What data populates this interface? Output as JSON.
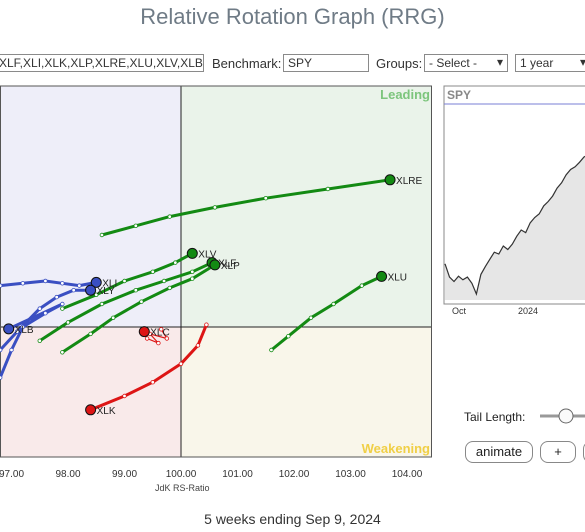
{
  "title": "Relative Rotation Graph (RRG)",
  "controls": {
    "symbols_value": "XLF,XLI,XLK,XLP,XLRE,XLU,XLV,XLB",
    "benchmark_label": "Benchmark:",
    "benchmark_value": "SPY",
    "groups_label": "Groups:",
    "groups_value": "- Select -",
    "period_value": "1 year"
  },
  "quadrants": {
    "leading": "Leading",
    "weakening": "Weakening"
  },
  "colors": {
    "leading_bg": "#eaf3ea",
    "weakening_bg": "#f9f6ea",
    "lagging_bg": "#f9eaea",
    "improving_bg": "#eeeef9",
    "green": "#138a13",
    "blue": "#3a4fc2",
    "red": "#dd1515"
  },
  "chart_data": {
    "type": "scatter",
    "xlabel": "JdK RS-Ratio",
    "ylabel": "",
    "xlim": [
      96.8,
      104.5
    ],
    "ylim": [
      96.2,
      104.3
    ],
    "x_ticks": [
      "97.00",
      "98.00",
      "99.00",
      "100.00",
      "101.00",
      "102.00",
      "103.00",
      "104.00"
    ],
    "center": [
      100,
      100
    ],
    "series": [
      {
        "name": "XLRE",
        "color": "green",
        "points": [
          [
            98.6,
            102.0
          ],
          [
            99.2,
            102.2
          ],
          [
            99.8,
            102.4
          ],
          [
            100.6,
            102.6
          ],
          [
            101.5,
            102.8
          ],
          [
            102.6,
            103.0
          ],
          [
            103.7,
            103.2
          ]
        ]
      },
      {
        "name": "XLV",
        "color": "green",
        "points": [
          [
            97.9,
            100.4
          ],
          [
            98.5,
            100.7
          ],
          [
            99.0,
            101.0
          ],
          [
            99.5,
            101.2
          ],
          [
            99.9,
            101.4
          ],
          [
            100.2,
            101.6
          ]
        ]
      },
      {
        "name": "XLF",
        "color": "green",
        "points": [
          [
            97.5,
            99.7
          ],
          [
            98.0,
            100.1
          ],
          [
            98.6,
            100.5
          ],
          [
            99.2,
            100.8
          ],
          [
            99.7,
            101.0
          ],
          [
            100.2,
            101.2
          ],
          [
            100.55,
            101.4
          ]
        ]
      },
      {
        "name": "XLP",
        "color": "green",
        "points": [
          [
            97.9,
            99.45
          ],
          [
            98.4,
            99.85
          ],
          [
            98.8,
            100.2
          ],
          [
            99.3,
            100.55
          ],
          [
            99.8,
            100.85
          ],
          [
            100.2,
            101.05
          ],
          [
            100.6,
            101.35
          ]
        ]
      },
      {
        "name": "XLU",
        "color": "green",
        "points": [
          [
            101.6,
            99.5
          ],
          [
            101.9,
            99.8
          ],
          [
            102.3,
            100.2
          ],
          [
            102.7,
            100.5
          ],
          [
            103.2,
            100.9
          ],
          [
            103.55,
            101.1
          ]
        ]
      },
      {
        "name": "XLI",
        "color": "blue",
        "points": [
          [
            96.8,
            100.9
          ],
          [
            97.2,
            100.95
          ],
          [
            97.6,
            101.0
          ],
          [
            97.9,
            100.95
          ],
          [
            98.2,
            100.9
          ],
          [
            98.5,
            100.97
          ]
        ]
      },
      {
        "name": "XLY",
        "color": "blue",
        "points": [
          [
            96.8,
            99.5
          ],
          [
            97.1,
            99.9
          ],
          [
            97.5,
            100.4
          ],
          [
            97.8,
            100.65
          ],
          [
            98.1,
            100.8
          ],
          [
            98.4,
            100.8
          ]
        ]
      },
      {
        "name": "XLB",
        "color": "blue",
        "points": [
          [
            96.8,
            98.9
          ],
          [
            97.0,
            99.5
          ],
          [
            97.2,
            100.0
          ],
          [
            97.6,
            100.3
          ],
          [
            97.9,
            100.5
          ],
          [
            96.95,
            99.96
          ]
        ]
      },
      {
        "name": "XLK",
        "color": "red",
        "points": [
          [
            100.45,
            100.05
          ],
          [
            100.3,
            99.6
          ],
          [
            100.0,
            99.2
          ],
          [
            99.5,
            98.8
          ],
          [
            99.0,
            98.5
          ],
          [
            98.4,
            98.2
          ]
        ]
      },
      {
        "name": "XLC",
        "color": "red",
        "points": [
          [
            99.65,
            99.95
          ],
          [
            99.75,
            99.75
          ],
          [
            99.45,
            99.85
          ],
          [
            99.6,
            99.65
          ],
          [
            99.4,
            99.75
          ],
          [
            99.35,
            99.9
          ]
        ]
      }
    ]
  },
  "benchmark_chart": {
    "symbol": "SPY",
    "x_ticks": [
      "Oct",
      "2024"
    ],
    "values": [
      5100,
      4950,
      4900,
      4960,
      4920,
      4950,
      4880,
      4760,
      4980,
      5070,
      5150,
      5230,
      5210,
      5300,
      5260,
      5320,
      5410,
      5480,
      5450,
      5560,
      5620,
      5660,
      5750,
      5800,
      5860,
      5950,
      6010,
      6100,
      6160,
      6190,
      6240,
      6300,
      6330,
      6390
    ]
  },
  "tail": {
    "label": "Tail Length:",
    "value": 0.5
  },
  "buttons": {
    "animate": "animate",
    "plus": "+"
  },
  "footer": "5 weeks ending Sep 9, 2024"
}
